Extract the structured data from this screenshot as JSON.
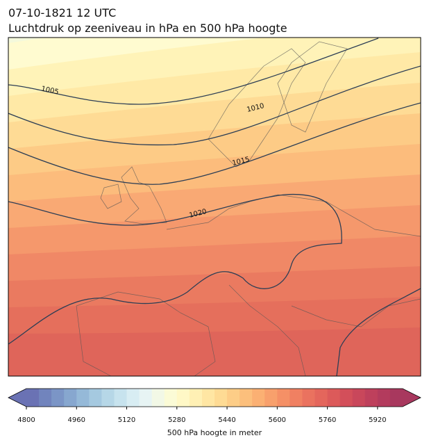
{
  "title": "07-10-1821 12 UTC",
  "subtitle": "Luchtdruk op zeeniveau in hPa en 500 hPa hoogte",
  "map": {
    "isobar_values": [
      1005,
      1010,
      1015,
      1020
    ]
  },
  "colorbar": {
    "label": "500 hPa hoogte in meter",
    "lim": [
      4800,
      6000
    ],
    "ticks": [
      4800,
      4960,
      5120,
      5280,
      5440,
      5600,
      5760,
      5920
    ],
    "colors": [
      "#6a72b4",
      "#7184bd",
      "#7b95c6",
      "#87a7cf",
      "#95b9d8",
      "#a5c9e0",
      "#b6d7e7",
      "#c7e3ee",
      "#d8edf3",
      "#e7f4f4",
      "#f2f8e6",
      "#fbfbd6",
      "#fff8c6",
      "#fff0b4",
      "#ffe6a3",
      "#fedb94",
      "#fdcd87",
      "#fcbf7c",
      "#fbb073",
      "#f8a06c",
      "#f59066",
      "#f08062",
      "#ea725f",
      "#e4665c",
      "#dc5a5a",
      "#d34f5a",
      "#c9475b",
      "#be405c",
      "#b33b5d",
      "#a8385e"
    ]
  }
}
